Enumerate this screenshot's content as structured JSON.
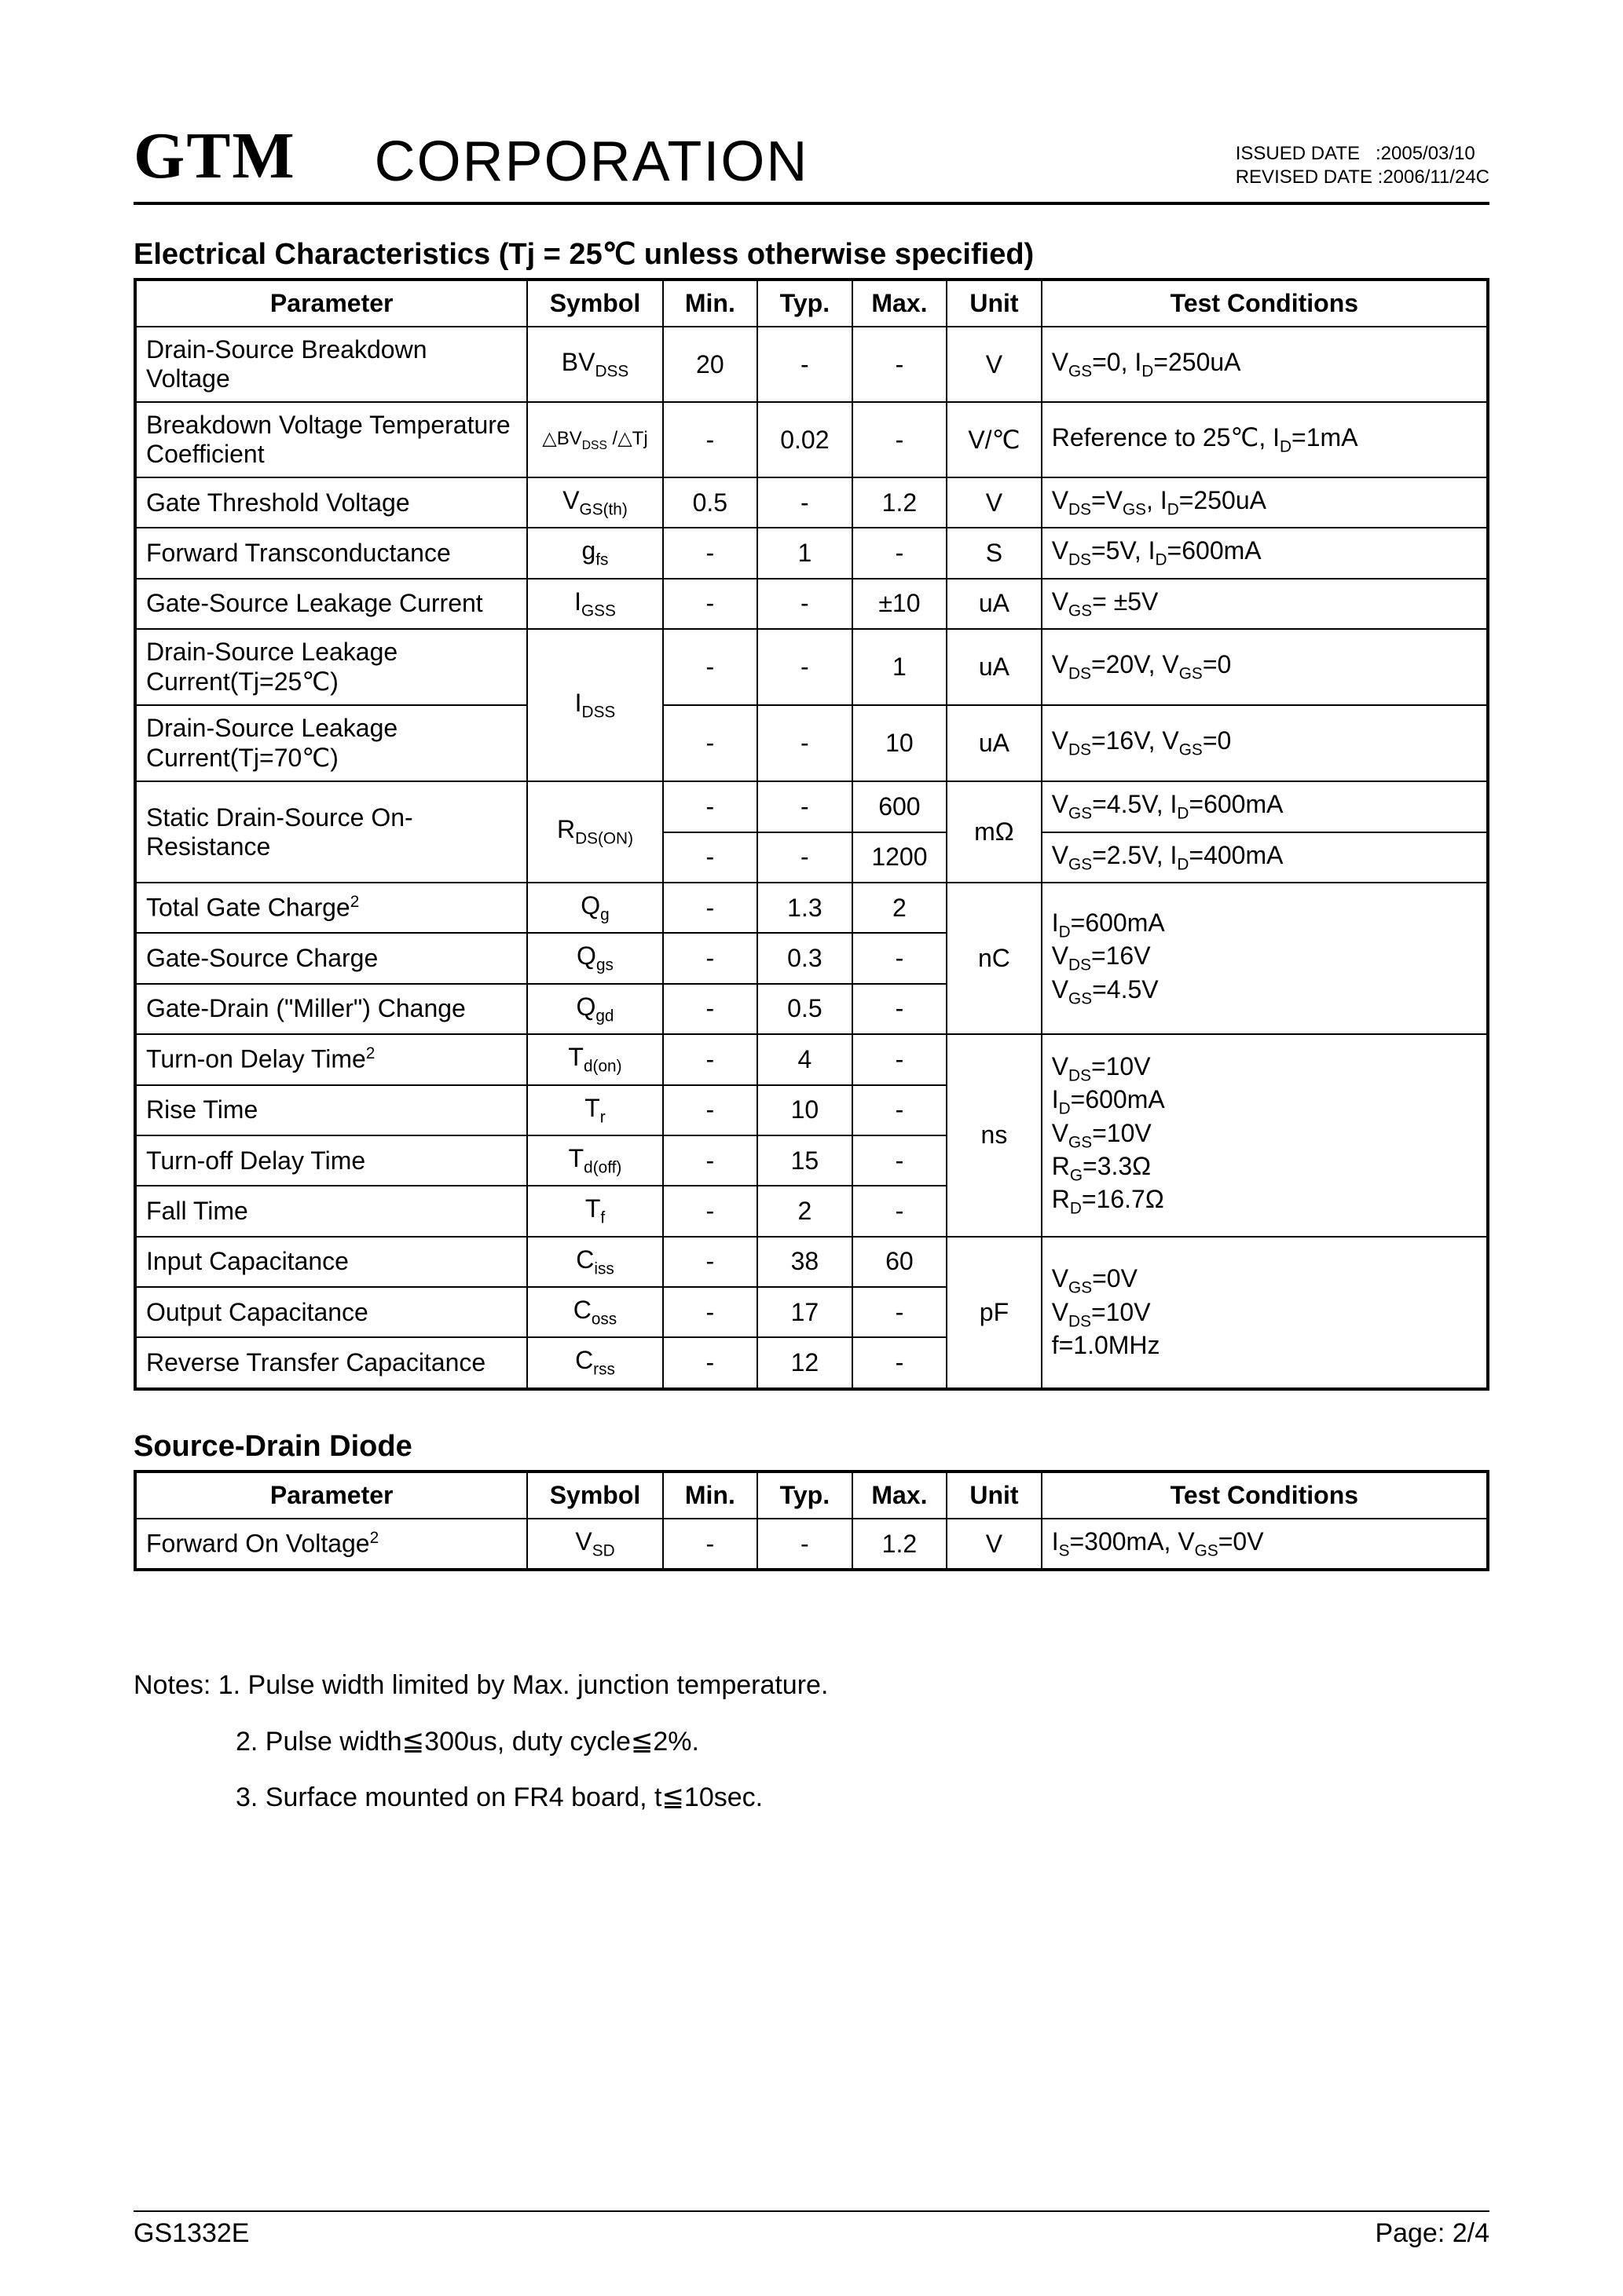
{
  "header": {
    "logo": "GTM",
    "corp": "CORPORATION",
    "issued_label": "ISSUED DATE",
    "issued_value": ":2005/03/10",
    "revised_label": "REVISED DATE",
    "revised_value": ":2006/11/24C"
  },
  "elec": {
    "title": "Electrical Characteristics (Tj = 25℃ unless otherwise specified)",
    "headers": {
      "parameter": "Parameter",
      "symbol": "Symbol",
      "min": "Min.",
      "typ": "Typ.",
      "max": "Max.",
      "unit": "Unit",
      "cond": "Test Conditions"
    },
    "rows": {
      "r0": {
        "param": "Drain-Source Breakdown Voltage",
        "sym_html": "BV<span class='sub'>DSS</span>",
        "min": "20",
        "typ": "-",
        "max": "-",
        "unit": "V",
        "cond_html": "V<span class='sub'>GS</span>=0, I<span class='sub'>D</span>=250uA"
      },
      "r1": {
        "param": "Breakdown Voltage Temperature Coefficient",
        "sym_html": "△BV<span class='sub'>DSS</span> /△Tj",
        "min": "-",
        "typ": "0.02",
        "max": "-",
        "unit": "V/℃",
        "cond_html": "Reference to 25℃, I<span class='sub'>D</span>=1mA"
      },
      "r2": {
        "param": "Gate Threshold Voltage",
        "sym_html": "V<span class='sub'>GS(th)</span>",
        "min": "0.5",
        "typ": "-",
        "max": "1.2",
        "unit": "V",
        "cond_html": "V<span class='sub'>DS</span>=V<span class='sub'>GS</span>, I<span class='sub'>D</span>=250uA"
      },
      "r3": {
        "param": "Forward Transconductance",
        "sym_html": "g<span class='sub'>fs</span>",
        "min": "-",
        "typ": "1",
        "max": "-",
        "unit": "S",
        "cond_html": "V<span class='sub'>DS</span>=5V, I<span class='sub'>D</span>=600mA"
      },
      "r4": {
        "param": "Gate-Source Leakage Current",
        "sym_html": "I<span class='sub'>GSS</span>",
        "min": "-",
        "typ": "-",
        "max": "±10",
        "unit": "uA",
        "cond_html": "V<span class='sub'>GS</span>= ±5V"
      },
      "r5": {
        "param": "Drain-Source Leakage Current(Tj=25℃)",
        "min": "-",
        "typ": "-",
        "max": "1",
        "unit": "uA",
        "cond_html": "V<span class='sub'>DS</span>=20V, V<span class='sub'>GS</span>=0"
      },
      "r5sym": {
        "sym_html": "I<span class='sub'>DSS</span>"
      },
      "r6": {
        "param": "Drain-Source Leakage Current(Tj=70℃)",
        "min": "-",
        "typ": "-",
        "max": "10",
        "unit": "uA",
        "cond_html": "V<span class='sub'>DS</span>=16V, V<span class='sub'>GS</span>=0"
      },
      "r7": {
        "param": "Static Drain-Source On-Resistance",
        "sym_html": "R<span class='sub'>DS(ON)</span>",
        "min": "-",
        "typ": "-",
        "max": "600",
        "unit": "mΩ",
        "cond_html": "V<span class='sub'>GS</span>=4.5V, I<span class='sub'>D</span>=600mA"
      },
      "r8": {
        "min": "-",
        "typ": "-",
        "max": "1200",
        "cond_html": "V<span class='sub'>GS</span>=2.5V, I<span class='sub'>D</span>=400mA"
      },
      "r9": {
        "param_html": "Total Gate Charge<span class='sup'>2</span>",
        "sym_html": "Q<span class='sub'>g</span>",
        "min": "-",
        "typ": "1.3",
        "max": "2"
      },
      "r9cond": {
        "unit": "nC",
        "cond_html": "I<span class='sub'>D</span>=600mA<br>V<span class='sub'>DS</span>=16V<br>V<span class='sub'>GS</span>=4.5V"
      },
      "r10": {
        "param": "Gate-Source Charge",
        "sym_html": "Q<span class='sub'>gs</span>",
        "min": "-",
        "typ": "0.3",
        "max": "-"
      },
      "r11": {
        "param": "Gate-Drain (\"Miller\") Change",
        "sym_html": "Q<span class='sub'>gd</span>",
        "min": "-",
        "typ": "0.5",
        "max": "-"
      },
      "r12": {
        "param_html": "Turn-on Delay Time<span class='sup'>2</span>",
        "sym_html": "T<span class='sub'>d(on)</span>",
        "min": "-",
        "typ": "4",
        "max": "-"
      },
      "r12cond": {
        "unit": "ns",
        "cond_html": "V<span class='sub'>DS</span>=10V<br>I<span class='sub'>D</span>=600mA<br>V<span class='sub'>GS</span>=10V<br>R<span class='sub'>G</span>=3.3Ω<br>R<span class='sub'>D</span>=16.7Ω"
      },
      "r13": {
        "param": "Rise Time",
        "sym_html": "T<span class='sub'>r</span>",
        "min": "-",
        "typ": "10",
        "max": "-"
      },
      "r14": {
        "param": "Turn-off Delay Time",
        "sym_html": "T<span class='sub'>d(off)</span>",
        "min": "-",
        "typ": "15",
        "max": "-"
      },
      "r15": {
        "param": "Fall Time",
        "sym_html": "T<span class='sub'>f</span>",
        "min": "-",
        "typ": "2",
        "max": "-"
      },
      "r16": {
        "param": "Input Capacitance",
        "sym_html": "C<span class='sub'>iss</span>",
        "min": "-",
        "typ": "38",
        "max": "60"
      },
      "r16cond": {
        "unit": "pF",
        "cond_html": "V<span class='sub'>GS</span>=0V<br>V<span class='sub'>DS</span>=10V<br>f=1.0MHz"
      },
      "r17": {
        "param": "Output Capacitance",
        "sym_html": "C<span class='sub'>oss</span>",
        "min": "-",
        "typ": "17",
        "max": "-"
      },
      "r18": {
        "param": "Reverse Transfer Capacitance",
        "sym_html": "C<span class='sub'>rss</span>",
        "min": "-",
        "typ": "12",
        "max": "-"
      }
    }
  },
  "diode": {
    "title": "Source-Drain Diode",
    "headers": {
      "parameter": "Parameter",
      "symbol": "Symbol",
      "min": "Min.",
      "typ": "Typ.",
      "max": "Max.",
      "unit": "Unit",
      "cond": "Test Conditions"
    },
    "row": {
      "param_html": "Forward On Voltage<span class='sup'>2</span>",
      "sym_html": "V<span class='sub'>SD</span>",
      "min": "-",
      "typ": "-",
      "max": "1.2",
      "unit": "V",
      "cond_html": "I<span class='sub'>S</span>=300mA, V<span class='sub'>GS</span>=0V"
    }
  },
  "notes": {
    "n1": "Notes: 1. Pulse width limited by Max. junction temperature.",
    "n2": "2. Pulse width≦300us, duty cycle≦2%.",
    "n3": "3. Surface mounted on FR4 board, t≦10sec."
  },
  "footer": {
    "left": "GS1332E",
    "right": "Page: 2/4"
  }
}
